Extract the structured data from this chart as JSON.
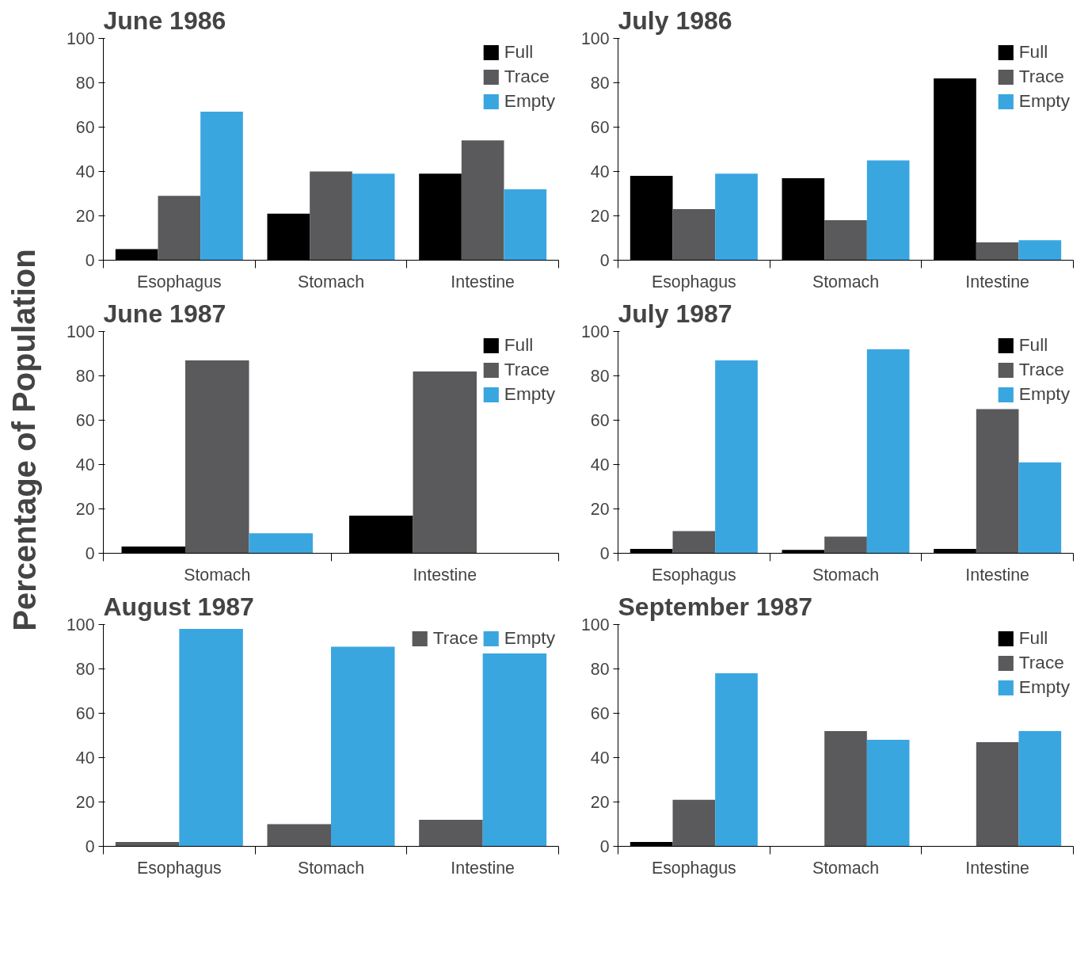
{
  "chart_data": [
    {
      "type": "bar",
      "title": "June  1986",
      "ylabel": "Percentage of Population",
      "categories": [
        "Esophagus",
        "Stomach",
        "Intestine"
      ],
      "ylim": [
        0,
        100
      ],
      "yticks": [
        0,
        20,
        40,
        60,
        80,
        100
      ],
      "grid": false,
      "legend": "top right",
      "series": [
        {
          "name": "Full",
          "color": "#000000",
          "values": [
            5,
            21,
            39
          ]
        },
        {
          "name": "Trace",
          "color": "#5a5a5c",
          "values": [
            29,
            40,
            54
          ]
        },
        {
          "name": "Empty",
          "color": "#3aa6e0",
          "values": [
            67,
            39,
            32
          ]
        }
      ]
    },
    {
      "type": "bar",
      "title": "July  1986",
      "categories": [
        "Esophagus",
        "Stomach",
        "Intestine"
      ],
      "ylim": [
        0,
        100
      ],
      "yticks": [
        0,
        20,
        40,
        60,
        80,
        100
      ],
      "grid": false,
      "legend": "top right",
      "series": [
        {
          "name": "Full",
          "color": "#000000",
          "values": [
            38,
            37,
            82
          ]
        },
        {
          "name": "Trace",
          "color": "#5a5a5c",
          "values": [
            23,
            18,
            8
          ]
        },
        {
          "name": "Empty",
          "color": "#3aa6e0",
          "values": [
            39,
            45,
            9
          ]
        }
      ]
    },
    {
      "type": "bar",
      "title": "June  1987",
      "categories": [
        "Stomach",
        "Intestine"
      ],
      "ylim": [
        0,
        100
      ],
      "yticks": [
        0,
        20,
        40,
        60,
        80,
        100
      ],
      "grid": false,
      "legend": "top right",
      "series": [
        {
          "name": "Full",
          "color": "#000000",
          "values": [
            3,
            17
          ]
        },
        {
          "name": "Trace",
          "color": "#5a5a5c",
          "values": [
            87,
            82
          ]
        },
        {
          "name": "Empty",
          "color": "#3aa6e0",
          "values": [
            9,
            0
          ]
        }
      ]
    },
    {
      "type": "bar",
      "title": "July  1987",
      "categories": [
        "Esophagus",
        "Stomach",
        "Intestine"
      ],
      "ylim": [
        0,
        100
      ],
      "yticks": [
        0,
        20,
        40,
        60,
        80,
        100
      ],
      "grid": false,
      "legend": "top right",
      "series": [
        {
          "name": "Full",
          "color": "#000000",
          "values": [
            2,
            1.5,
            2
          ]
        },
        {
          "name": "Trace",
          "color": "#5a5a5c",
          "values": [
            10,
            7.5,
            65
          ]
        },
        {
          "name": "Empty",
          "color": "#3aa6e0",
          "values": [
            87,
            92,
            41
          ]
        }
      ]
    },
    {
      "type": "bar",
      "title": "August  1987",
      "categories": [
        "Esophagus",
        "Stomach",
        "Intestine"
      ],
      "ylim": [
        0,
        100
      ],
      "yticks": [
        0,
        20,
        40,
        60,
        80,
        100
      ],
      "grid": false,
      "legend": "top right",
      "series": [
        {
          "name": "Trace",
          "color": "#5a5a5c",
          "values": [
            2,
            10,
            12
          ]
        },
        {
          "name": "Empty",
          "color": "#3aa6e0",
          "values": [
            98,
            90,
            87
          ]
        }
      ]
    },
    {
      "type": "bar",
      "title": "September  1987",
      "categories": [
        "Esophagus",
        "Stomach",
        "Intestine"
      ],
      "ylim": [
        0,
        100
      ],
      "yticks": [
        0,
        20,
        40,
        60,
        80,
        100
      ],
      "grid": false,
      "legend": "top right",
      "series": [
        {
          "name": "Full",
          "color": "#000000",
          "values": [
            2,
            0,
            0
          ]
        },
        {
          "name": "Trace",
          "color": "#5a5a5c",
          "values": [
            21,
            52,
            47
          ]
        },
        {
          "name": "Empty",
          "color": "#3aa6e0",
          "values": [
            78,
            48,
            52
          ]
        }
      ]
    }
  ]
}
